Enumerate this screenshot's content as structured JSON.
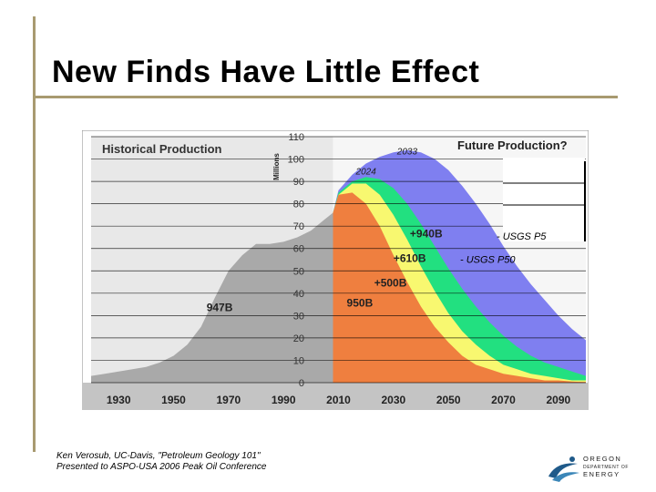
{
  "slide": {
    "title": "New Finds Have Little Effect",
    "credit_line1": "Ken Verosub, UC-Davis, \"Petroleum Geology 101\"",
    "credit_line2": "Presented to ASPO-USA 2006 Peak Oil Conference"
  },
  "logo": {
    "line1": "OREGON",
    "line2": "DEPARTMENT OF",
    "line3": "ENERGY"
  },
  "chart_data": {
    "type": "area",
    "title_left": "Historical Production",
    "title_right": "Future Production?",
    "ylabel": "Millions",
    "ylim": [
      0,
      110
    ],
    "xlim": [
      1920,
      2100
    ],
    "y_ticks": [
      "0",
      "10",
      "20",
      "30",
      "40",
      "50",
      "60",
      "70",
      "80",
      "90",
      "100",
      "110"
    ],
    "x_ticks": [
      "1930",
      "1950",
      "1970",
      "1990",
      "2010",
      "2030",
      "2050",
      "2070",
      "2090"
    ],
    "historical": {
      "label": "947B",
      "x": [
        1920,
        1925,
        1930,
        1935,
        1940,
        1945,
        1950,
        1955,
        1960,
        1965,
        1970,
        1975,
        1980,
        1985,
        1990,
        1995,
        2000,
        2005,
        2008
      ],
      "y": [
        3,
        4,
        5,
        6,
        7,
        9,
        12,
        17,
        25,
        38,
        50,
        57,
        62,
        62,
        63,
        65,
        68,
        73,
        76
      ]
    },
    "series": [
      {
        "label": "+940B",
        "annotation": "- USGS P5",
        "color": "#7f7ff0",
        "x": [
          2008,
          2010,
          2015,
          2020,
          2025,
          2030,
          2035,
          2040,
          2045,
          2050,
          2055,
          2060,
          2065,
          2070,
          2075,
          2080,
          2085,
          2090,
          2095,
          2100
        ],
        "y": [
          76,
          86,
          93,
          98,
          101,
          103,
          104,
          103,
          100,
          95,
          88,
          80,
          71,
          61,
          52,
          44,
          37,
          30,
          24,
          19
        ]
      },
      {
        "label": "+610B",
        "annotation": "- USGS P50",
        "color": "#22e080",
        "x": [
          2008,
          2010,
          2015,
          2020,
          2025,
          2030,
          2035,
          2040,
          2045,
          2050,
          2055,
          2060,
          2065,
          2070,
          2075,
          2080,
          2085,
          2090,
          2095,
          2100
        ],
        "y": [
          76,
          85,
          90,
          92,
          91,
          87,
          80,
          71,
          61,
          51,
          42,
          34,
          27,
          21,
          16,
          12,
          9,
          7,
          5,
          3
        ]
      },
      {
        "label": "+500B",
        "color": "#f8f870",
        "x": [
          2008,
          2010,
          2015,
          2020,
          2025,
          2030,
          2035,
          2040,
          2045,
          2050,
          2055,
          2060,
          2065,
          2070,
          2075,
          2080,
          2085,
          2090,
          2095,
          2100
        ],
        "y": [
          76,
          84,
          89,
          89,
          84,
          75,
          64,
          52,
          41,
          31,
          23,
          17,
          12,
          8,
          6,
          4,
          3,
          2,
          1,
          1
        ]
      },
      {
        "label": "950B",
        "color": "#ef7f3f",
        "x": [
          2008,
          2010,
          2015,
          2020,
          2025,
          2030,
          2035,
          2040,
          2045,
          2050,
          2055,
          2060,
          2065,
          2070,
          2075,
          2080,
          2085,
          2090,
          2095,
          2100
        ],
        "y": [
          76,
          84,
          85,
          80,
          70,
          57,
          45,
          34,
          25,
          18,
          12,
          8,
          6,
          4,
          3,
          2,
          1,
          1,
          0.5,
          0.3
        ]
      }
    ],
    "peak_labels": [
      {
        "text": "2033",
        "x": 2035,
        "y": 102
      },
      {
        "text": "2024",
        "x": 2020,
        "y": 93
      }
    ]
  }
}
